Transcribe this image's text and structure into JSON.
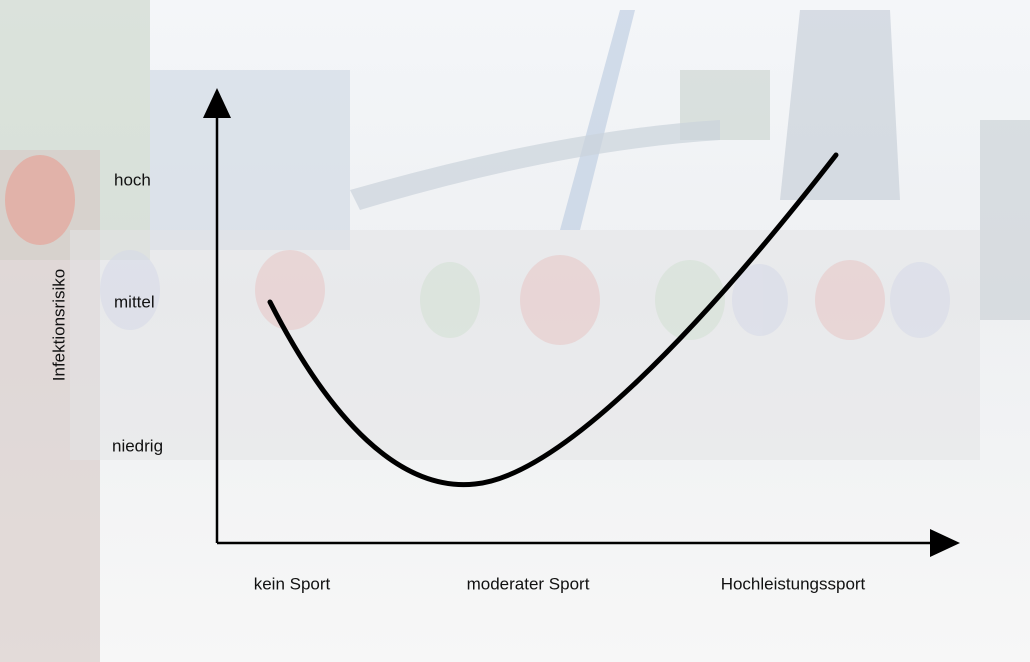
{
  "y_axis": {
    "title": "Infektionsrisiko",
    "levels": [
      "hoch",
      "mittel",
      "niedrig"
    ]
  },
  "x_axis": {
    "levels": [
      "kein Sport",
      "moderater Sport",
      "Hochleistungssport"
    ]
  }
}
